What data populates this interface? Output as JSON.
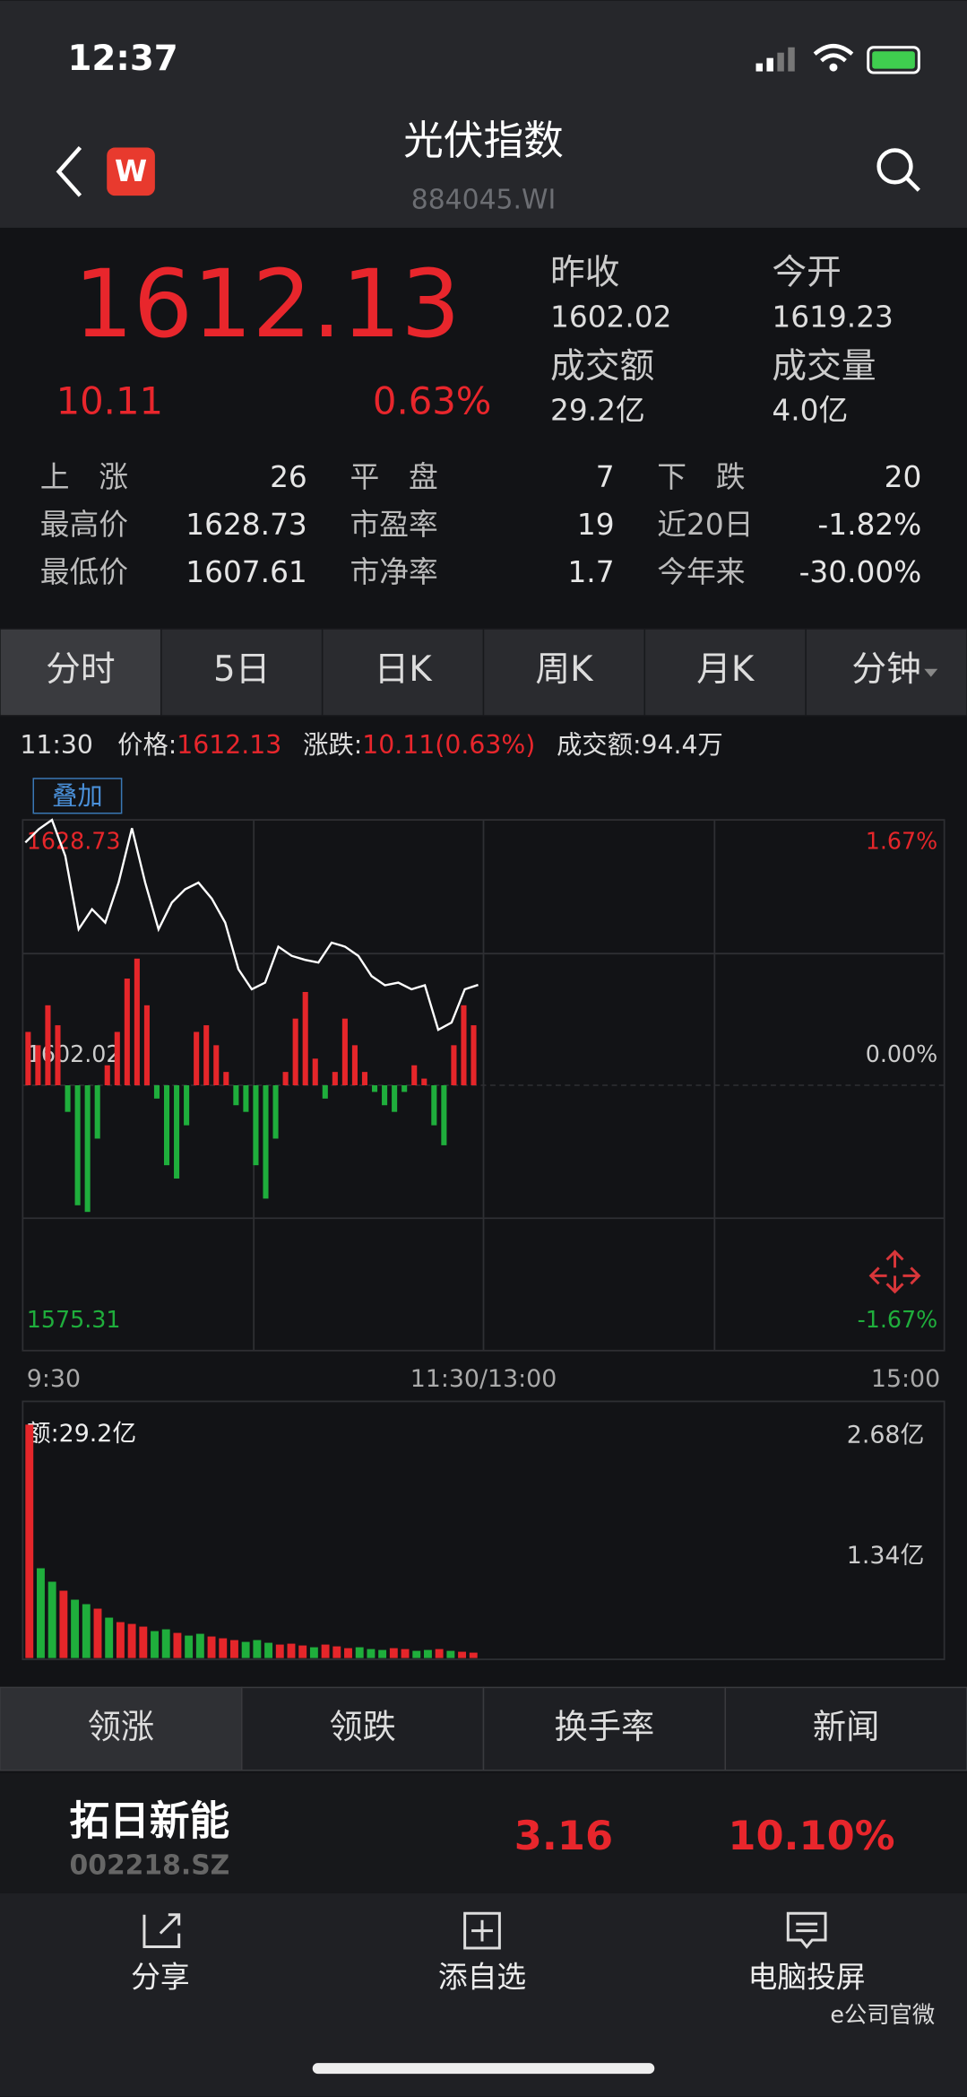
{
  "status": {
    "time": "12:37"
  },
  "header": {
    "title": "光伏指数",
    "code": "884045.WI"
  },
  "quote": {
    "price": "1612.13",
    "change": "10.11",
    "percent": "0.63%",
    "stats": [
      {
        "label": "昨收",
        "value": "1602.02"
      },
      {
        "label": "今开",
        "value": "1619.23"
      },
      {
        "label": "成交额",
        "value": "29.2亿"
      },
      {
        "label": "成交量",
        "value": "4.0亿"
      }
    ],
    "grid": [
      [
        "上　涨",
        "26",
        "平　盘",
        "7",
        "下　跌",
        "20"
      ],
      [
        "最高价",
        "1628.73",
        "市盈率",
        "19",
        "近20日",
        "-1.82%"
      ],
      [
        "最低价",
        "1607.61",
        "市净率",
        "1.7",
        "今年来",
        "-30.00%"
      ]
    ]
  },
  "tabs": [
    "分时",
    "5日",
    "日K",
    "周K",
    "月K",
    "分钟"
  ],
  "info": {
    "time": "11:30",
    "items": [
      {
        "label": "价格:",
        "value": "1612.13"
      },
      {
        "label": "涨跌:",
        "value": "10.11(0.63%)"
      },
      {
        "label": "成交额:",
        "value": "94.4万"
      }
    ],
    "overlay": "叠加"
  },
  "chart_data": [
    {
      "type": "line",
      "color": "#ffffff",
      "up_color": "#e5262a",
      "down_color": "#1fae3c",
      "values": [
        1626.45,
        1627.79,
        1628.73,
        1625.1,
        1617.72,
        1619.74,
        1618.39,
        1622.42,
        1627.9,
        1622.42,
        1617.72,
        1620.41,
        1621.75,
        1622.42,
        1620.81,
        1618.39,
        1613.7,
        1611.68,
        1612.35,
        1615.98,
        1615.04,
        1614.64,
        1614.37,
        1616.38,
        1615.98,
        1615.04,
        1613.02,
        1612.09,
        1612.35,
        1611.68,
        1612.09,
        1607.61,
        1608.33,
        1611.68,
        1612.13
      ],
      "bar_values": [
        5.37,
        4.03,
        8.05,
        6.04,
        -2.68,
        -12.08,
        -12.75,
        -5.37,
        2.01,
        5.37,
        10.74,
        12.75,
        8.05,
        -1.34,
        -8.05,
        -9.39,
        -4.03,
        5.37,
        6.04,
        4.03,
        1.34,
        -2.01,
        -2.68,
        -8.05,
        -11.41,
        -5.37,
        1.34,
        6.71,
        9.39,
        2.68,
        -1.34,
        1.34,
        6.71,
        4.03,
        1.34,
        -0.67,
        -2.01,
        -2.68,
        -0.67,
        2.01,
        0.67,
        -4.03,
        -6.04,
        4.03,
        8.05,
        6.04
      ],
      "ylim": [
        1575.31,
        1628.73
      ],
      "yticks": [
        1575.31,
        1602.02,
        1628.73
      ],
      "y2lim": [
        -1.67,
        1.67
      ],
      "y2ticks": [
        {
          "value": -1.67,
          "label": "-1.67%"
        },
        {
          "value": 0,
          "label": "0.00%"
        },
        {
          "value": 1.67,
          "label": "1.67%"
        }
      ],
      "x_labels": [
        "9:30",
        "11:30/13:00",
        "15:00"
      ]
    },
    {
      "type": "bar",
      "title": "额:29.2亿",
      "values": [
        2.6,
        1.0,
        0.85,
        0.75,
        0.65,
        0.6,
        0.55,
        0.45,
        0.4,
        0.38,
        0.35,
        0.3,
        0.32,
        0.28,
        0.25,
        0.27,
        0.24,
        0.22,
        0.2,
        0.18,
        0.2,
        0.17,
        0.15,
        0.16,
        0.14,
        0.12,
        0.15,
        0.13,
        0.11,
        0.12,
        0.1,
        0.09,
        0.11,
        0.1,
        0.08,
        0.09,
        0.1,
        0.08,
        0.07,
        0.06
      ],
      "colors": [
        "#e5262a",
        "#1fae3c",
        "#1fae3c",
        "#e5262a",
        "#1fae3c",
        "#1fae3c",
        "#e5262a",
        "#1fae3c",
        "#e5262a",
        "#e5262a",
        "#e5262a",
        "#1fae3c",
        "#1fae3c",
        "#e5262a",
        "#1fae3c",
        "#1fae3c",
        "#e5262a",
        "#e5262a",
        "#e5262a",
        "#1fae3c",
        "#1fae3c",
        "#1fae3c",
        "#e5262a",
        "#e5262a",
        "#e5262a",
        "#1fae3c",
        "#e5262a",
        "#e5262a",
        "#e5262a",
        "#1fae3c",
        "#1fae3c",
        "#1fae3c",
        "#e5262a",
        "#e5262a",
        "#1fae3c",
        "#1fae3c",
        "#e5262a",
        "#1fae3c",
        "#e5262a",
        "#e5262a"
      ],
      "ylim": [
        0,
        2.68
      ],
      "yticks": [
        {
          "value": 1.34,
          "label": "1.34亿"
        },
        {
          "value": 2.68,
          "label": "2.68亿"
        }
      ]
    }
  ],
  "lower_tabs": [
    "领涨",
    "领跌",
    "换手率",
    "新闻"
  ],
  "stock": {
    "name": "拓日新能",
    "code": "002218.SZ",
    "price": "3.16",
    "percent": "10.10%"
  },
  "toolbar": [
    "分享",
    "添自选",
    "电脑投屏"
  ],
  "watermark": "e公司官微"
}
